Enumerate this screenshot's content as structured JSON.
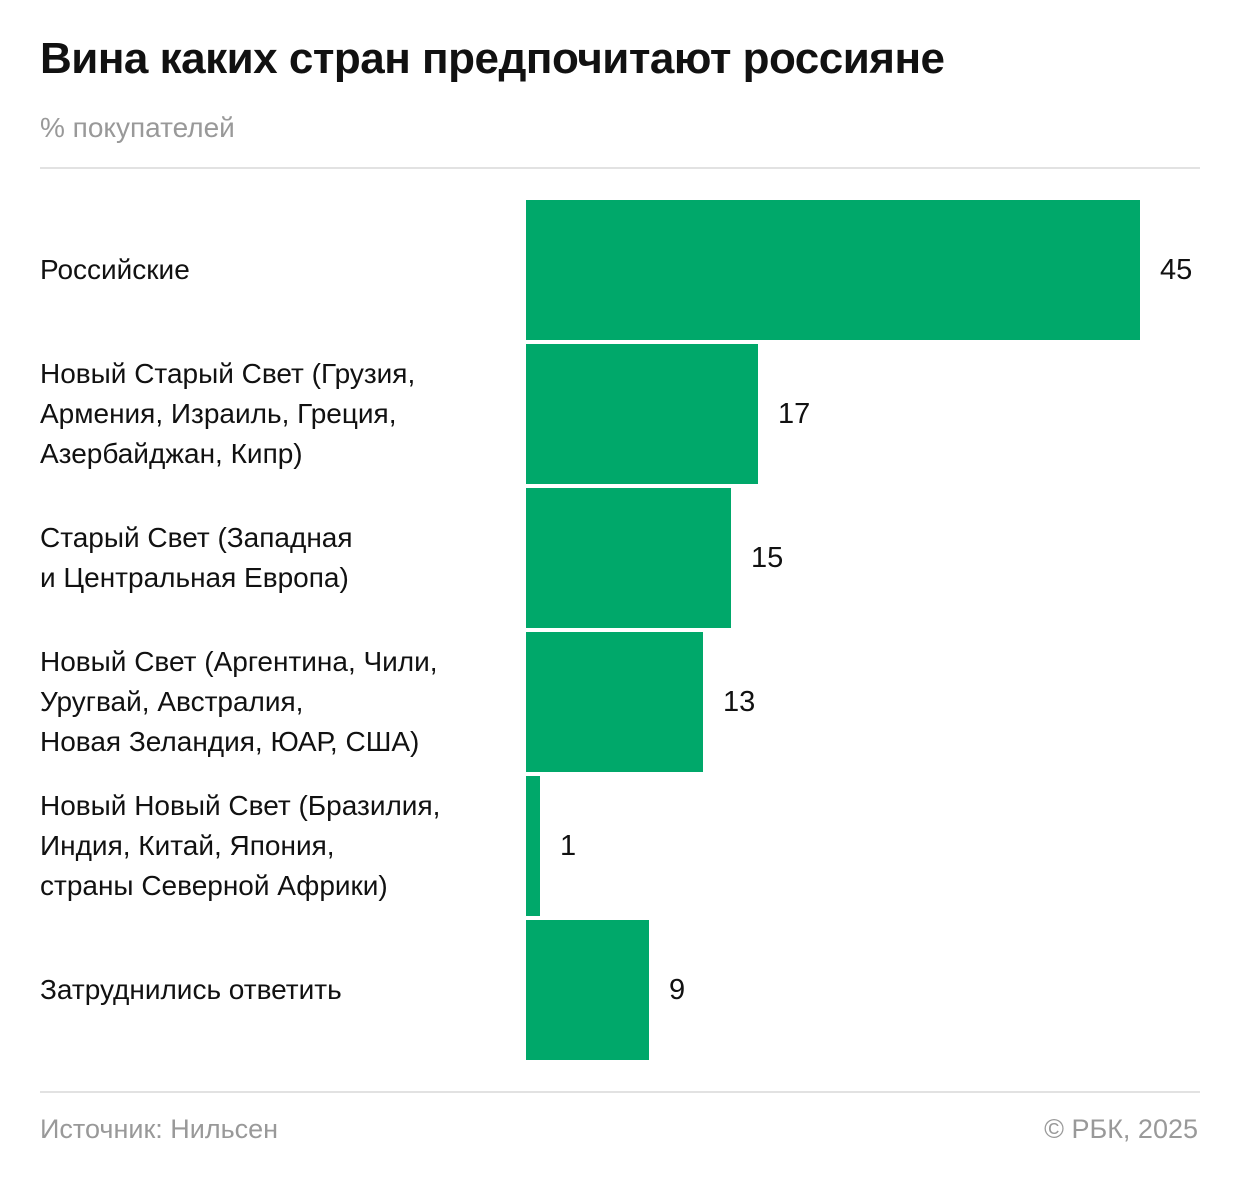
{
  "header": {
    "title": "Вина каких стран предпочитают россияне",
    "subtitle": "% покупателей"
  },
  "footer": {
    "source": "Источник: Нильсен",
    "copyright": "© РБК, 2025"
  },
  "colors": {
    "bar": "#00A86A"
  },
  "chart_data": {
    "type": "bar",
    "orientation": "horizontal",
    "title": "Вина каких стран предпочитают россияне",
    "subtitle": "% покупателей",
    "categories": [
      "Российские",
      "Новый Старый Свет (Грузия,\nАрмения, Израиль, Греция,\nАзербайджан, Кипр)",
      "Старый Свет (Западная\nи Центральная Европа)",
      "Новый Свет (Аргентина, Чили,\nУругвай, Австралия,\nНовая Зеландия, ЮАР, США)",
      "Новый Новый Свет (Бразилия,\nИндия, Китай, Япония,\nстраны Северной Африки)",
      "Затруднились ответить"
    ],
    "values": [
      45,
      17,
      15,
      13,
      1,
      9
    ],
    "xlim": [
      0,
      45
    ],
    "grid": false,
    "data_labels": true
  }
}
